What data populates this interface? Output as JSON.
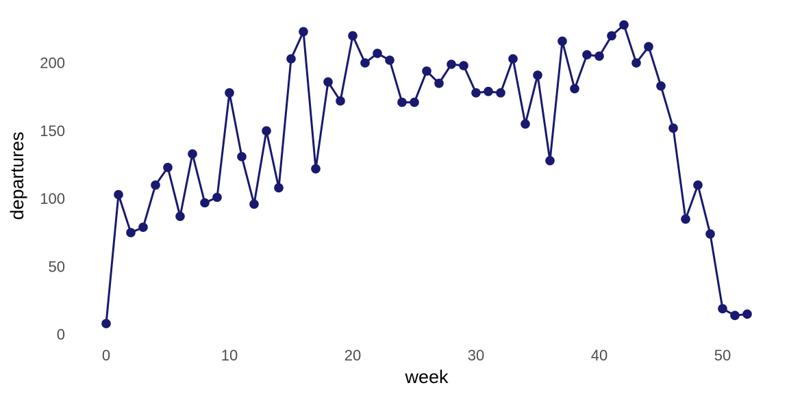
{
  "chart_data": {
    "type": "line",
    "title": "",
    "xlabel": "week",
    "ylabel": "departures",
    "x": [
      0,
      1,
      2,
      3,
      4,
      5,
      6,
      7,
      8,
      9,
      10,
      11,
      12,
      13,
      14,
      15,
      16,
      17,
      18,
      19,
      20,
      21,
      22,
      23,
      24,
      25,
      26,
      27,
      28,
      29,
      30,
      31,
      32,
      33,
      34,
      35,
      36,
      37,
      38,
      39,
      40,
      41,
      42,
      43,
      44,
      45,
      46,
      47,
      48,
      49,
      50,
      51,
      52
    ],
    "series": [
      {
        "name": "departures",
        "values": [
          8,
          103,
          75,
          79,
          110,
          123,
          87,
          133,
          97,
          101,
          178,
          131,
          96,
          150,
          108,
          203,
          223,
          122,
          186,
          172,
          220,
          200,
          207,
          202,
          171,
          171,
          194,
          185,
          199,
          198,
          178,
          179,
          178,
          203,
          155,
          191,
          128,
          216,
          181,
          206,
          205,
          220,
          228,
          200,
          212,
          183,
          152,
          85,
          110,
          74,
          19,
          14,
          15
        ]
      }
    ],
    "x_ticks": [
      0,
      10,
      20,
      30,
      40,
      50
    ],
    "y_ticks": [
      0,
      50,
      100,
      150,
      200
    ],
    "xlim": [
      0,
      52
    ],
    "ylim": [
      0,
      230
    ],
    "grid": false,
    "legend": false,
    "marker": "circle",
    "line_color": "#191970",
    "marker_color": "#191970",
    "tick_label_color": "#4d4d4d",
    "axis_title_color": "#000000",
    "background_color": "#ffffff"
  }
}
